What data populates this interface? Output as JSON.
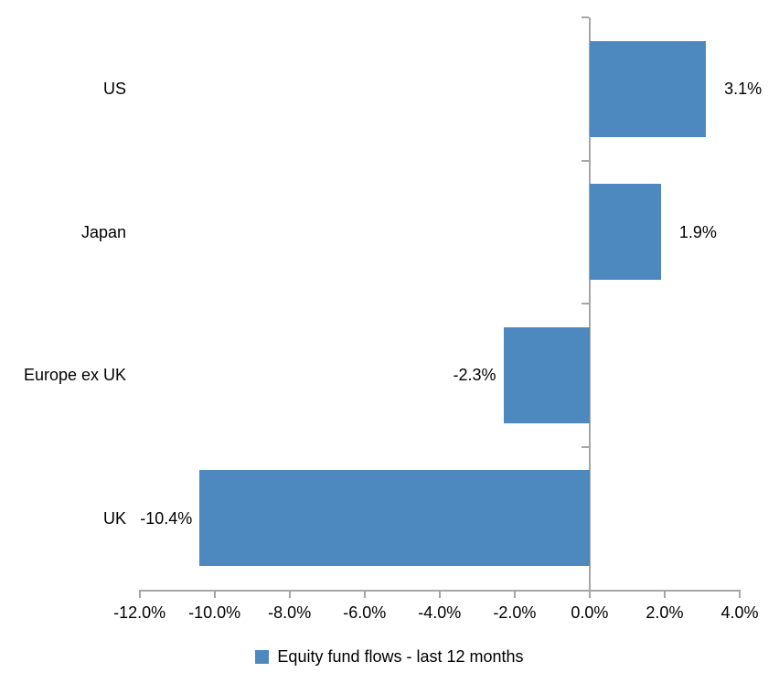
{
  "chart_data": {
    "type": "bar",
    "orientation": "horizontal",
    "categories": [
      "US",
      "Japan",
      "Europe ex UK",
      "UK"
    ],
    "values": [
      3.1,
      1.9,
      -2.3,
      -10.4
    ],
    "value_labels": [
      "3.1%",
      "1.9%",
      "-2.3%",
      "-10.4%"
    ],
    "x_axis": {
      "min": -12,
      "max": 4,
      "tick_values": [
        -12,
        -10,
        -8,
        -6,
        -4,
        -2,
        0,
        2,
        4
      ],
      "tick_labels": [
        "-12.0%",
        "-10.0%",
        "-8.0%",
        "-6.0%",
        "-4.0%",
        "-2.0%",
        "0.0%",
        "2.0%",
        "4.0%"
      ]
    },
    "grid": false,
    "bar_color": "#4D89BF",
    "axis_color": "#A6A6A6",
    "legend": {
      "position": "bottom",
      "entries": [
        {
          "label": "Equity fund flows - last 12 months",
          "color": "#4D89BF"
        }
      ]
    }
  }
}
